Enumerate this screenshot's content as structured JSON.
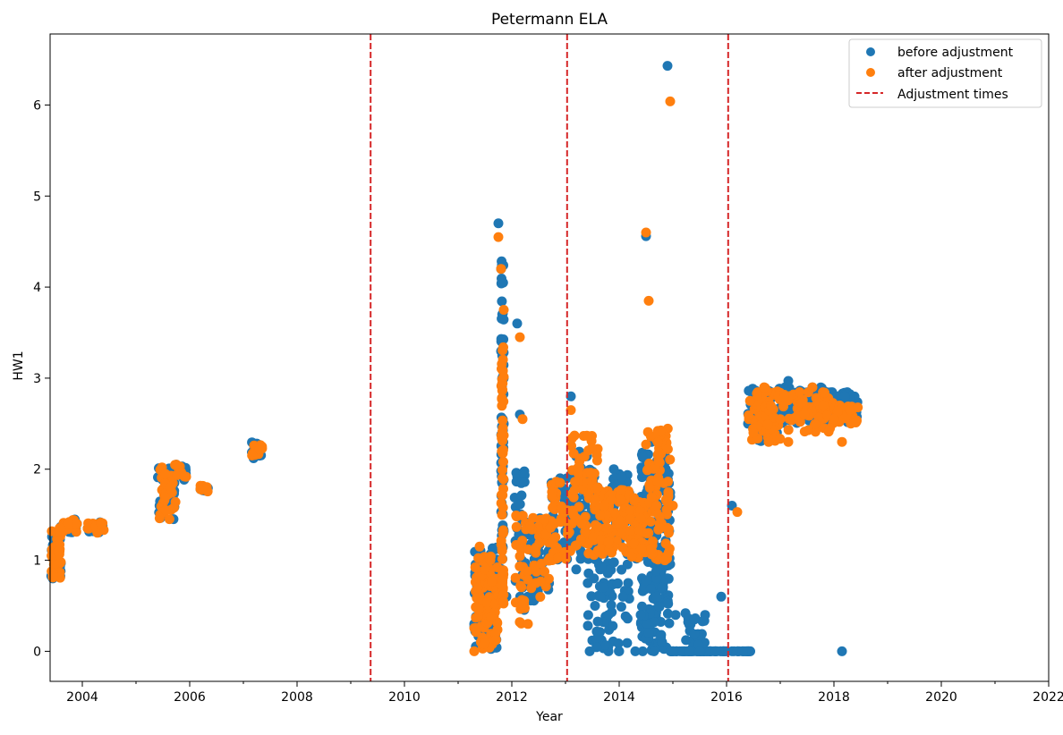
{
  "chart_data": {
    "type": "scatter",
    "title": "Petermann ELA",
    "xlabel": "Year",
    "ylabel": "HW1",
    "xlim": [
      2003.4,
      2022.0
    ],
    "ylim": [
      -0.33,
      6.78
    ],
    "x_ticks": [
      "2004",
      "2006",
      "2008",
      "2010",
      "2012",
      "2014",
      "2016",
      "2018",
      "2020",
      "2022"
    ],
    "y_ticks": [
      "0",
      "1",
      "2",
      "3",
      "4",
      "5",
      "6"
    ],
    "grid": false,
    "legend": {
      "placement": "top-right",
      "entries": [
        "before adjustment",
        "after adjustment",
        "Adjustment times"
      ]
    },
    "colors": {
      "before": "#1f77b4",
      "after": "#ff7f0e",
      "adjustment": "#d62728"
    },
    "adjustment_times": [
      2009.37,
      2013.03,
      2016.03
    ],
    "series": [
      {
        "name": "before adjustment",
        "x": [
          2003.45,
          2003.55,
          2003.65,
          2003.75,
          2003.9,
          2004.1,
          2004.25,
          2004.35,
          2005.45,
          2005.55,
          2005.65,
          2005.75,
          2005.9,
          2006.2,
          2006.3,
          2007.2,
          2007.3,
          2011.3,
          2011.4,
          2011.5,
          2011.6,
          2011.7,
          2011.75,
          2011.8,
          2011.85,
          2011.9,
          2012.1,
          2012.15,
          2012.2,
          2012.3,
          2012.45,
          2012.6,
          2012.75,
          2012.9,
          2013.0,
          2013.1,
          2013.15,
          2013.2,
          2013.3,
          2013.45,
          2013.55,
          2013.6,
          2013.65,
          2013.7,
          2013.8,
          2013.9,
          2014.0,
          2014.05,
          2014.1,
          2014.2,
          2014.3,
          2014.4,
          2014.5,
          2014.55,
          2014.6,
          2014.65,
          2014.7,
          2014.75,
          2014.8,
          2014.9,
          2014.95,
          2015.0,
          2015.05,
          2015.2,
          2015.3,
          2015.4,
          2015.5,
          2015.6,
          2015.7,
          2015.8,
          2015.9,
          2016.0,
          2016.1,
          2016.2,
          2016.3,
          2016.4,
          2016.5,
          2016.6,
          2016.7,
          2016.8,
          2016.9,
          2017.0,
          2017.15,
          2017.3,
          2017.45,
          2017.6,
          2017.75,
          2017.9,
          2018.0,
          2018.1,
          2018.15,
          2018.2,
          2018.3,
          2018.4
        ],
        "y": [
          0.8,
          1.1,
          1.35,
          1.4,
          1.4,
          1.35,
          1.38,
          1.4,
          1.5,
          1.55,
          1.8,
          2.05,
          1.9,
          1.78,
          1.78,
          2.25,
          2.22,
          0.3,
          0.5,
          0.9,
          0.95,
          1.0,
          4.7,
          4.2,
          2.5,
          0.6,
          3.6,
          2.6,
          0.7,
          0.6,
          1.2,
          1.4,
          1.7,
          1.9,
          1.55,
          2.8,
          1.8,
          0.9,
          1.6,
          0.0,
          0.5,
          1.8,
          0.6,
          0.7,
          0.4,
          2.0,
          0.0,
          1.5,
          1.7,
          1.3,
          0.0,
          0.4,
          4.56,
          0.2,
          2.3,
          0.0,
          0.6,
          1.5,
          0.1,
          6.43,
          1.7,
          0.0,
          0.4,
          0.0,
          0.0,
          0.35,
          0.0,
          0.4,
          0.0,
          0.0,
          0.6,
          0.0,
          1.6,
          0.0,
          0.0,
          2.5,
          2.6,
          2.75,
          2.8,
          2.85,
          2.8,
          2.8,
          2.97,
          2.55,
          2.65,
          2.75,
          2.55,
          2.75,
          2.65,
          2.75,
          0.0,
          2.8,
          2.7,
          2.6
        ],
        "spans": [
          {
            "x0": 2003.42,
            "x1": 2003.6,
            "y0": 0.8,
            "y1": 1.35,
            "n": 30
          },
          {
            "x0": 2003.55,
            "x1": 2003.9,
            "y0": 1.3,
            "y1": 1.45,
            "n": 20
          },
          {
            "x0": 2004.1,
            "x1": 2004.4,
            "y0": 1.3,
            "y1": 1.42,
            "n": 14
          },
          {
            "x0": 2005.4,
            "x1": 2005.75,
            "y0": 1.45,
            "y1": 2.05,
            "n": 26
          },
          {
            "x0": 2005.75,
            "x1": 2005.95,
            "y0": 1.88,
            "y1": 2.05,
            "n": 10
          },
          {
            "x0": 2006.2,
            "x1": 2006.35,
            "y0": 1.75,
            "y1": 1.82,
            "n": 8
          },
          {
            "x0": 2007.15,
            "x1": 2007.35,
            "y0": 2.12,
            "y1": 2.3,
            "n": 12
          },
          {
            "x0": 2011.3,
            "x1": 2011.75,
            "y0": 0.0,
            "y1": 1.15,
            "n": 90
          },
          {
            "x0": 2011.8,
            "x1": 2011.85,
            "y0": 0.5,
            "y1": 4.4,
            "n": 60
          },
          {
            "x0": 2012.05,
            "x1": 2012.25,
            "y0": 0.3,
            "y1": 2.1,
            "n": 30
          },
          {
            "x0": 2012.25,
            "x1": 2012.7,
            "y0": 0.55,
            "y1": 1.5,
            "n": 40
          },
          {
            "x0": 2012.7,
            "x1": 2013.1,
            "y0": 1.0,
            "y1": 1.95,
            "n": 40
          },
          {
            "x0": 2013.1,
            "x1": 2013.55,
            "y0": 1.0,
            "y1": 2.2,
            "n": 60
          },
          {
            "x0": 2013.4,
            "x1": 2014.2,
            "y0": 0.0,
            "y1": 1.95,
            "n": 120
          },
          {
            "x0": 2014.2,
            "x1": 2014.5,
            "y0": 1.0,
            "y1": 1.7,
            "n": 40
          },
          {
            "x0": 2014.4,
            "x1": 2014.95,
            "y0": 0.0,
            "y1": 2.2,
            "n": 200
          },
          {
            "x0": 2014.95,
            "x1": 2016.0,
            "y0": 0.0,
            "y1": 0.0,
            "n": 60
          },
          {
            "x0": 2015.2,
            "x1": 2015.6,
            "y0": 0.0,
            "y1": 0.42,
            "n": 25
          },
          {
            "x0": 2016.1,
            "x1": 2016.5,
            "y0": 0.0,
            "y1": 0.0,
            "n": 16
          },
          {
            "x0": 2016.4,
            "x1": 2017.0,
            "y0": 2.3,
            "y1": 2.9,
            "n": 60
          },
          {
            "x0": 2017.0,
            "x1": 2018.0,
            "y0": 2.5,
            "y1": 2.9,
            "n": 90
          },
          {
            "x0": 2018.0,
            "x1": 2018.45,
            "y0": 2.5,
            "y1": 2.85,
            "n": 50
          }
        ]
      },
      {
        "name": "after adjustment",
        "x": [
          2003.45,
          2003.55,
          2003.65,
          2003.75,
          2003.9,
          2004.1,
          2004.25,
          2004.35,
          2005.45,
          2005.55,
          2005.65,
          2005.75,
          2005.9,
          2006.2,
          2006.3,
          2007.2,
          2007.3,
          2011.3,
          2011.4,
          2011.5,
          2011.6,
          2011.75,
          2011.8,
          2011.85,
          2012.15,
          2012.2,
          2012.3,
          2012.45,
          2012.6,
          2012.75,
          2012.9,
          2013.1,
          2013.15,
          2013.3,
          2013.6,
          2013.8,
          2014.0,
          2014.2,
          2014.5,
          2014.55,
          2014.7,
          2014.85,
          2014.95,
          2015.0,
          2016.2,
          2016.5,
          2016.7,
          2017.0,
          2017.15,
          2017.45,
          2017.6,
          2018.0,
          2018.15,
          2018.3
        ],
        "y": [
          0.82,
          1.1,
          1.35,
          1.4,
          1.4,
          1.35,
          1.37,
          1.4,
          1.5,
          1.55,
          1.8,
          2.05,
          1.92,
          1.78,
          1.78,
          2.26,
          2.22,
          0.0,
          1.15,
          0.9,
          1.0,
          4.55,
          4.2,
          3.75,
          3.45,
          2.55,
          0.3,
          0.75,
          1.45,
          1.7,
          1.85,
          2.65,
          1.5,
          1.4,
          1.8,
          1.2,
          1.4,
          1.45,
          4.6,
          3.85,
          1.6,
          1.0,
          6.04,
          1.6,
          1.53,
          2.4,
          2.9,
          2.55,
          2.3,
          2.6,
          2.9,
          2.55,
          2.3,
          2.65
        ],
        "spans": [
          {
            "x0": 2003.42,
            "x1": 2003.6,
            "y0": 0.8,
            "y1": 1.35,
            "n": 30
          },
          {
            "x0": 2003.55,
            "x1": 2003.9,
            "y0": 1.3,
            "y1": 1.45,
            "n": 20
          },
          {
            "x0": 2004.1,
            "x1": 2004.4,
            "y0": 1.3,
            "y1": 1.42,
            "n": 14
          },
          {
            "x0": 2005.4,
            "x1": 2005.75,
            "y0": 1.45,
            "y1": 2.05,
            "n": 26
          },
          {
            "x0": 2005.75,
            "x1": 2005.95,
            "y0": 1.88,
            "y1": 2.05,
            "n": 10
          },
          {
            "x0": 2006.2,
            "x1": 2006.35,
            "y0": 1.75,
            "y1": 1.82,
            "n": 8
          },
          {
            "x0": 2007.15,
            "x1": 2007.35,
            "y0": 2.12,
            "y1": 2.3,
            "n": 12
          },
          {
            "x0": 2011.3,
            "x1": 2011.75,
            "y0": 0.0,
            "y1": 1.05,
            "n": 90
          },
          {
            "x0": 2011.8,
            "x1": 2011.85,
            "y0": 0.5,
            "y1": 3.4,
            "n": 60
          },
          {
            "x0": 2012.05,
            "x1": 2012.25,
            "y0": 0.3,
            "y1": 1.5,
            "n": 25
          },
          {
            "x0": 2012.25,
            "x1": 2012.7,
            "y0": 0.55,
            "y1": 1.5,
            "n": 40
          },
          {
            "x0": 2012.7,
            "x1": 2013.1,
            "y0": 1.0,
            "y1": 1.9,
            "n": 40
          },
          {
            "x0": 2013.1,
            "x1": 2013.6,
            "y0": 1.0,
            "y1": 2.4,
            "n": 60
          },
          {
            "x0": 2013.5,
            "x1": 2014.2,
            "y0": 1.05,
            "y1": 1.8,
            "n": 80
          },
          {
            "x0": 2014.2,
            "x1": 2014.5,
            "y0": 1.0,
            "y1": 1.7,
            "n": 40
          },
          {
            "x0": 2014.5,
            "x1": 2014.95,
            "y0": 1.0,
            "y1": 2.45,
            "n": 80
          },
          {
            "x0": 2016.4,
            "x1": 2017.0,
            "y0": 2.3,
            "y1": 2.9,
            "n": 60
          },
          {
            "x0": 2017.0,
            "x1": 2018.0,
            "y0": 2.4,
            "y1": 2.85,
            "n": 70
          },
          {
            "x0": 2018.0,
            "x1": 2018.45,
            "y0": 2.5,
            "y1": 2.7,
            "n": 30
          }
        ]
      }
    ]
  }
}
